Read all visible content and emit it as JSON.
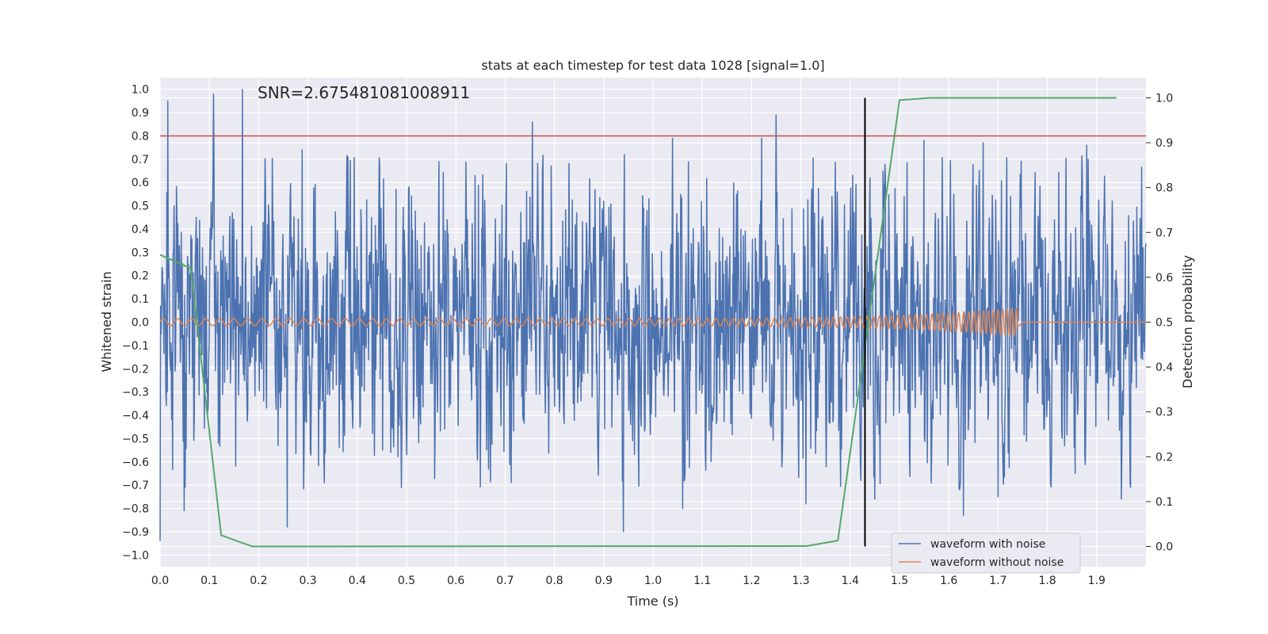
{
  "chart_data": {
    "type": "line",
    "title": "stats at each timestep for test data 1028 [signal=1.0]",
    "annotation": "SNR=2.675481081008911",
    "xlabel": "Time (s)",
    "ylabel": "Whitened strain",
    "y2label": "Detection probability",
    "xlim": [
      0.0,
      2.0
    ],
    "ylim": [
      -1.05,
      1.05
    ],
    "y2lim": [
      -0.045,
      1.045
    ],
    "grid": true,
    "legend_placement": "lower-right",
    "x_ticks": [
      "0.0",
      "0.1",
      "0.2",
      "0.3",
      "0.4",
      "0.5",
      "0.6",
      "0.7",
      "0.8",
      "0.9",
      "1.0",
      "1.1",
      "1.2",
      "1.3",
      "1.4",
      "1.5",
      "1.6",
      "1.7",
      "1.8",
      "1.9"
    ],
    "y_ticks": [
      "1.0",
      "0.9",
      "0.8",
      "0.7",
      "0.6",
      "0.5",
      "0.4",
      "0.3",
      "0.2",
      "0.1",
      "0.0",
      "−0.1",
      "−0.2",
      "−0.3",
      "−0.4",
      "−0.5",
      "−0.6",
      "−0.7",
      "−0.8",
      "−0.9",
      "−1.0"
    ],
    "y2_ticks": [
      "1.0",
      "0.9",
      "0.8",
      "0.7",
      "0.6",
      "0.5",
      "0.4",
      "0.3",
      "0.2",
      "0.1",
      "0.0"
    ],
    "threshold_y": 0.8,
    "marker_x": 1.43,
    "noise_waveform": {
      "name": "waveform with noise",
      "color": "#4c72b0",
      "x_start": 0.0,
      "x_end": 2.0,
      "peaks": [
        {
          "x": 0.0,
          "y": -0.94
        },
        {
          "x": 0.016,
          "y": 0.95
        },
        {
          "x": 0.049,
          "y": -0.81
        },
        {
          "x": 0.108,
          "y": 0.98
        },
        {
          "x": 0.167,
          "y": 1.0
        },
        {
          "x": 0.258,
          "y": -0.88
        },
        {
          "x": 0.288,
          "y": 0.74
        },
        {
          "x": 0.755,
          "y": 0.86
        },
        {
          "x": 0.94,
          "y": -0.9
        },
        {
          "x": 1.04,
          "y": 0.79
        },
        {
          "x": 1.06,
          "y": -0.8
        },
        {
          "x": 1.22,
          "y": 0.79
        },
        {
          "x": 1.25,
          "y": 0.89
        },
        {
          "x": 1.31,
          "y": -0.78
        },
        {
          "x": 1.44,
          "y": 0.62
        },
        {
          "x": 1.45,
          "y": -0.76
        },
        {
          "x": 1.55,
          "y": 0.78
        },
        {
          "x": 1.63,
          "y": -0.83
        },
        {
          "x": 1.67,
          "y": 0.77
        },
        {
          "x": 1.7,
          "y": -0.75
        },
        {
          "x": 1.88,
          "y": 0.76
        },
        {
          "x": 1.95,
          "y": -0.76
        }
      ]
    },
    "clean_waveform": {
      "name": "waveform without noise",
      "color": "#dd8452",
      "x_start": 0.0,
      "merger_x": 1.74,
      "start_frequency_hz": 35,
      "end_frequency_hz": 110,
      "start_amplitude": 0.015,
      "peak_amplitude": 0.06
    },
    "detection_probability": {
      "color": "#55a868",
      "x": [
        0.0,
        0.062,
        0.124,
        0.187,
        1.312,
        1.375,
        1.437,
        1.5,
        1.562,
        1.94
      ],
      "y": [
        0.65,
        0.62,
        0.025,
        0.0,
        0.001,
        0.013,
        0.5,
        0.995,
        1.0,
        1.0
      ]
    },
    "threshold_color": "#c44e52",
    "marker_color": "#000000"
  }
}
